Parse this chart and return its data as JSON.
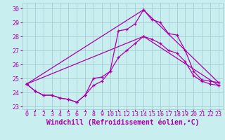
{
  "xlabel": "Windchill (Refroidissement éolien,°C)",
  "xlim": [
    -0.5,
    23.5
  ],
  "ylim": [
    22.8,
    30.4
  ],
  "yticks": [
    23,
    24,
    25,
    26,
    27,
    28,
    29,
    30
  ],
  "xticks": [
    0,
    1,
    2,
    3,
    4,
    5,
    6,
    7,
    8,
    9,
    10,
    11,
    12,
    13,
    14,
    15,
    16,
    17,
    18,
    19,
    20,
    21,
    22,
    23
  ],
  "bg_color": "#c8eef0",
  "grid_color": "#a0c8d0",
  "line_color": "#aa00aa",
  "lines": [
    {
      "x": [
        0,
        1,
        2,
        3,
        4,
        5,
        6,
        7,
        8,
        9,
        10,
        11,
        12,
        13,
        14,
        15,
        16,
        17,
        18,
        19,
        20,
        21,
        22,
        23
      ],
      "y": [
        24.6,
        24.1,
        23.8,
        23.8,
        23.6,
        23.5,
        23.3,
        23.8,
        25.0,
        25.1,
        25.5,
        28.4,
        28.5,
        28.9,
        29.9,
        29.2,
        29.0,
        28.2,
        28.1,
        27.0,
        25.5,
        24.9,
        24.8,
        24.7
      ]
    },
    {
      "x": [
        0,
        1,
        2,
        3,
        4,
        5,
        6,
        7,
        8,
        9,
        10,
        11,
        12,
        13,
        14,
        15,
        16,
        17,
        18,
        19,
        20,
        21,
        22,
        23
      ],
      "y": [
        24.6,
        24.1,
        23.8,
        23.8,
        23.6,
        23.5,
        23.3,
        23.8,
        24.5,
        24.8,
        25.5,
        26.5,
        27.0,
        27.5,
        28.0,
        27.8,
        27.5,
        27.0,
        26.8,
        26.2,
        25.2,
        24.8,
        24.6,
        24.5
      ]
    },
    {
      "x": [
        0,
        14,
        23
      ],
      "y": [
        24.6,
        29.9,
        24.7
      ]
    },
    {
      "x": [
        0,
        14,
        23
      ],
      "y": [
        24.6,
        28.0,
        24.5
      ]
    }
  ],
  "font_family": "monospace",
  "tick_fontsize": 6,
  "xlabel_fontsize": 7,
  "marker": "+",
  "markersize": 3,
  "linewidth": 0.9
}
